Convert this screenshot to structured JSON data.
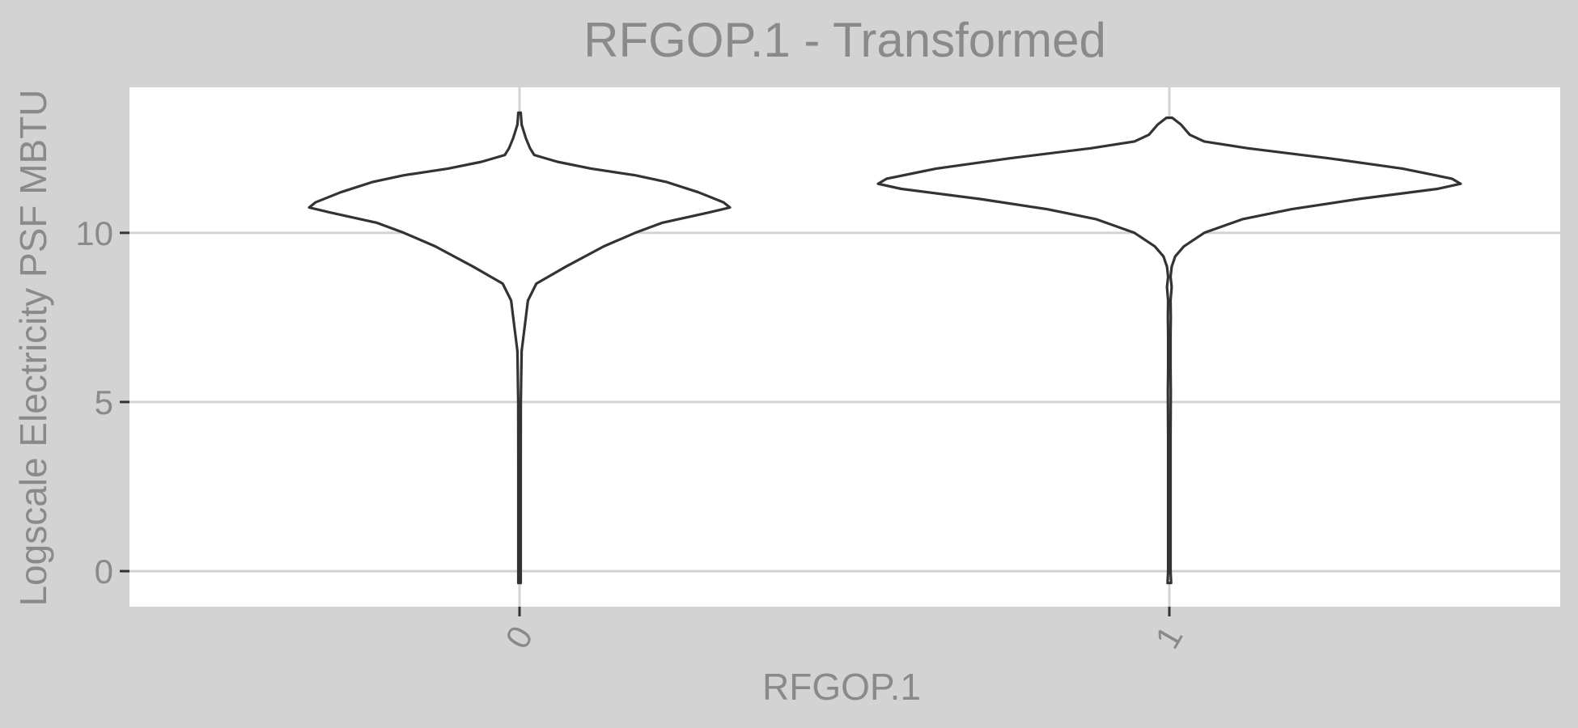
{
  "chart_data": {
    "type": "violin",
    "title": "RFGOP.1 - Transformed",
    "xlabel": "RFGOP.1",
    "ylabel": "Logscale Electricity PSF MBTU",
    "categories": [
      "0",
      "1"
    ],
    "ylim": [
      -1.05,
      14.3
    ],
    "yticks": [
      0,
      5,
      10
    ],
    "grid": true,
    "colors": {
      "outer_bg": "#d3d3d3",
      "panel_bg": "#ffffff",
      "grid": "#d3d3d3",
      "violin_stroke": "#333333",
      "text": "#8a8a8a"
    },
    "series": [
      {
        "category": "0",
        "y_range": [
          -0.35,
          13.55
        ],
        "profile": [
          [
            13.55,
            0.0
          ],
          [
            13.2,
            0.01
          ],
          [
            12.8,
            0.03
          ],
          [
            12.5,
            0.05
          ],
          [
            12.3,
            0.07
          ],
          [
            12.1,
            0.18
          ],
          [
            11.9,
            0.34
          ],
          [
            11.7,
            0.55
          ],
          [
            11.5,
            0.7
          ],
          [
            11.2,
            0.85
          ],
          [
            10.9,
            0.97
          ],
          [
            10.75,
            1.0
          ],
          [
            10.6,
            0.9
          ],
          [
            10.3,
            0.68
          ],
          [
            10.0,
            0.55
          ],
          [
            9.6,
            0.4
          ],
          [
            9.0,
            0.22
          ],
          [
            8.5,
            0.08
          ],
          [
            8.0,
            0.04
          ],
          [
            7.5,
            0.03
          ],
          [
            7.0,
            0.02
          ],
          [
            6.5,
            0.01
          ],
          [
            5.0,
            0.006
          ],
          [
            3.0,
            0.003
          ],
          [
            1.0,
            0.002
          ],
          [
            -0.35,
            0.0
          ]
        ]
      },
      {
        "category": "1",
        "y_range": [
          -0.35,
          13.4
        ],
        "profile": [
          [
            13.4,
            0.01
          ],
          [
            13.2,
            0.04
          ],
          [
            12.9,
            0.07
          ],
          [
            12.7,
            0.12
          ],
          [
            12.5,
            0.27
          ],
          [
            12.2,
            0.55
          ],
          [
            11.9,
            0.8
          ],
          [
            11.6,
            0.97
          ],
          [
            11.45,
            1.0
          ],
          [
            11.3,
            0.92
          ],
          [
            11.0,
            0.65
          ],
          [
            10.7,
            0.42
          ],
          [
            10.4,
            0.25
          ],
          [
            10.0,
            0.12
          ],
          [
            9.6,
            0.05
          ],
          [
            9.3,
            0.02
          ],
          [
            9.0,
            0.008
          ],
          [
            8.7,
            0.004
          ],
          [
            8.4,
            0.008
          ],
          [
            8.0,
            0.003
          ],
          [
            7.5,
            0.005
          ],
          [
            7.0,
            0.002
          ],
          [
            6.0,
            0.002
          ],
          [
            5.3,
            0.005
          ],
          [
            4.0,
            0.002
          ],
          [
            2.0,
            0.002
          ],
          [
            0.0,
            0.002
          ],
          [
            -0.35,
            0.006
          ]
        ]
      }
    ]
  }
}
